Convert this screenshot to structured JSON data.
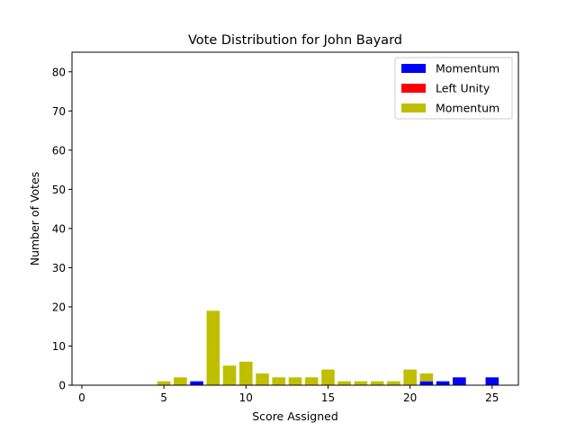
{
  "chart_data": {
    "type": "bar",
    "title": "Vote Distribution for John Bayard",
    "xlabel": "Score Assigned",
    "ylabel": "Number of Votes",
    "xlim": [
      -0.6,
      26.6
    ],
    "ylim": [
      0,
      85
    ],
    "xticks": [
      0,
      5,
      10,
      15,
      20,
      25
    ],
    "yticks": [
      0,
      10,
      20,
      30,
      40,
      50,
      60,
      70,
      80
    ],
    "legend_position": "upper right",
    "grid": false,
    "stacked": true,
    "series": [
      {
        "name": "Momentum",
        "color": "#0000ff",
        "x": [
          7,
          21,
          22,
          23,
          25
        ],
        "values": [
          1,
          1,
          1,
          2,
          2
        ]
      },
      {
        "name": "Left Unity",
        "color": "#ff0000",
        "x": [],
        "values": []
      },
      {
        "name": "Momentum",
        "color": "#bfbf00",
        "x": [
          5,
          6,
          8,
          9,
          10,
          11,
          12,
          13,
          14,
          15,
          16,
          17,
          18,
          19,
          20,
          21
        ],
        "values": [
          1,
          2,
          19,
          5,
          6,
          3,
          2,
          2,
          2,
          4,
          1,
          1,
          1,
          1,
          4,
          2
        ]
      }
    ]
  }
}
